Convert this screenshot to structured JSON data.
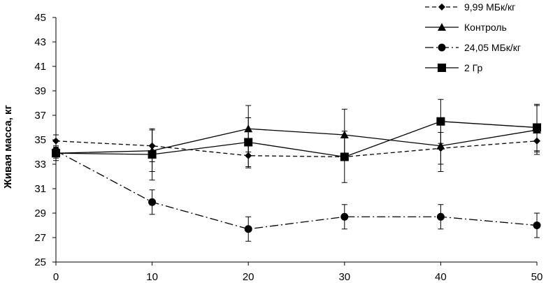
{
  "chart_data": {
    "type": "line",
    "title": "",
    "xlabel": "",
    "ylabel": "Живая масса, кг",
    "x": [
      0,
      10,
      20,
      30,
      40,
      50
    ],
    "x_ticks": [
      "0",
      "10",
      "20",
      "30",
      "40",
      "50"
    ],
    "y_ticks": [
      "25",
      "27",
      "29",
      "31",
      "33",
      "35",
      "37",
      "39",
      "41",
      "43",
      "45"
    ],
    "xlim": [
      0,
      50
    ],
    "ylim": [
      25,
      45
    ],
    "grid": false,
    "legend_position": "top-right",
    "series": [
      {
        "name": "9,99 МБк/кг",
        "dash": "6,4",
        "marker": "diamond",
        "values": [
          34.9,
          34.5,
          33.7,
          33.6,
          34.3,
          34.9
        ],
        "errors": [
          0.5,
          1.3,
          1.0,
          0.2,
          1.3,
          0.9
        ]
      },
      {
        "name": "Контроль",
        "dash": "",
        "marker": "triangle",
        "values": [
          33.9,
          34.1,
          35.9,
          35.4,
          34.5,
          35.8
        ],
        "errors": [
          0.6,
          1.7,
          1.9,
          2.1,
          2.1,
          2.0
        ]
      },
      {
        "name": "24,05 МБк/кг",
        "dash": "12,4,2,4",
        "marker": "circle",
        "values": [
          34.1,
          29.9,
          27.7,
          28.7,
          28.7,
          28.0
        ],
        "errors": [
          0.3,
          1.0,
          1.0,
          1.0,
          1.0,
          1.0
        ]
      },
      {
        "name": "2 Гр",
        "dash": "",
        "marker": "square",
        "values": [
          33.9,
          33.8,
          34.8,
          33.6,
          36.5,
          36.0
        ],
        "errors": [
          0.4,
          2.1,
          2.0,
          2.1,
          1.8,
          1.9
        ]
      }
    ]
  }
}
